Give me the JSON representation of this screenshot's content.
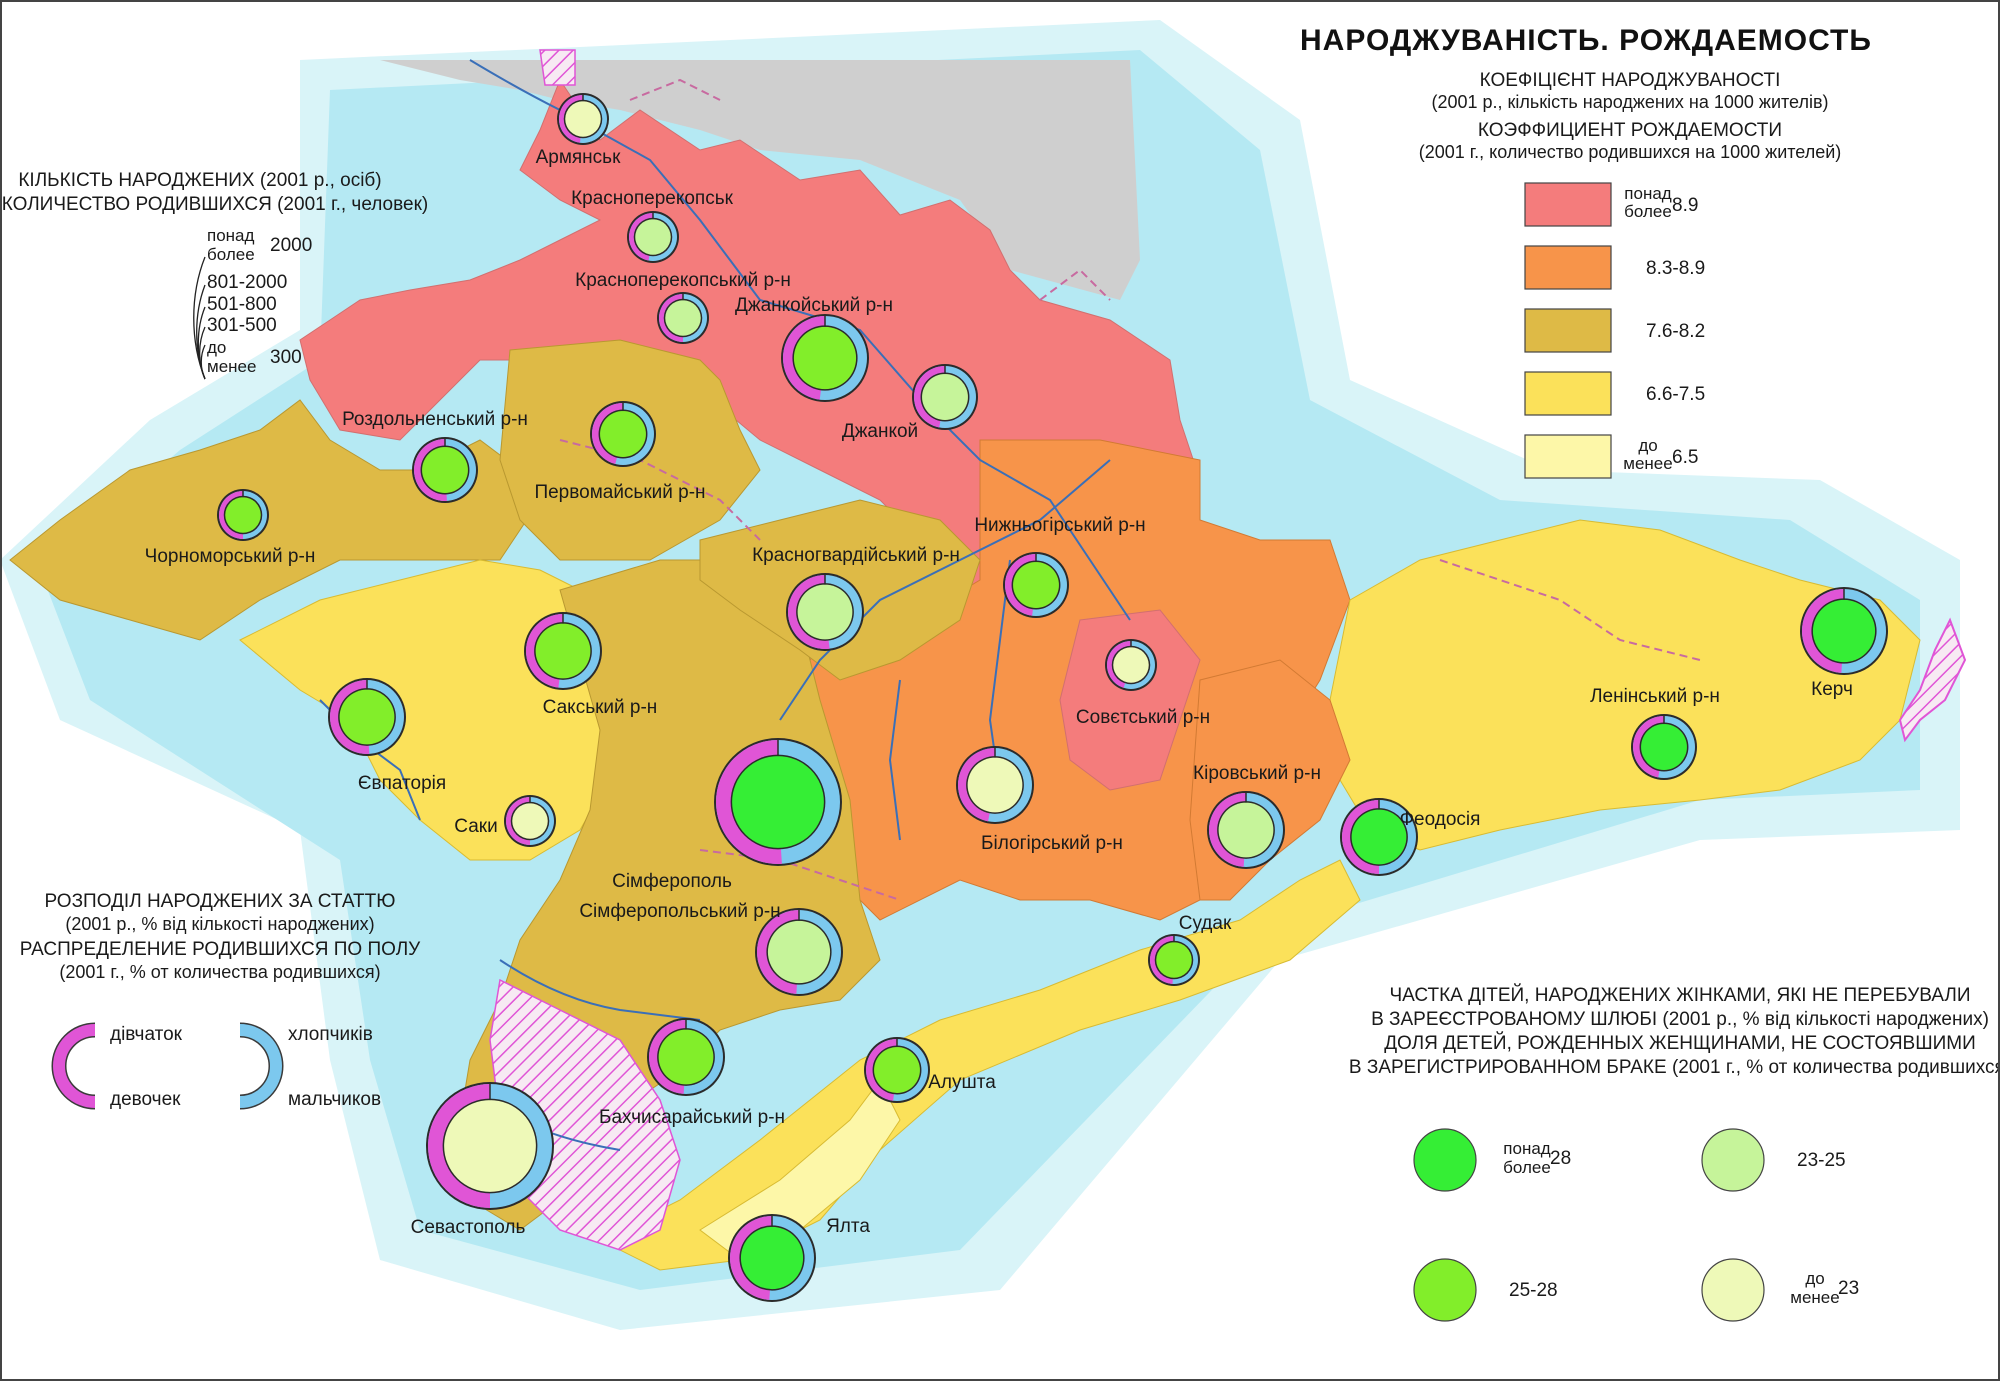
{
  "title": "НАРОДЖУВАНІСТЬ. РОЖДАЕМОСТЬ",
  "rate_legend": {
    "title_ua": "КОЕФІЦІЄНТ НАРОДЖУВАНОСТІ",
    "sub_ua": "(2001 р., кількість народжених на 1000 жителів)",
    "title_ru": "КОЭФФИЦИЕНТ РОЖДАЕМОСТИ",
    "sub_ru": "(2001 г., количество родившихся на 1000 жителей)",
    "classes": [
      {
        "prefix_ua": "понад",
        "prefix_ru": "более",
        "label": "8.9",
        "color": "#f47c7c"
      },
      {
        "prefix_ua": "",
        "prefix_ru": "",
        "label": "8.3-8.9",
        "color": "#f7944a"
      },
      {
        "prefix_ua": "",
        "prefix_ru": "",
        "label": "7.6-8.2",
        "color": "#deba46"
      },
      {
        "prefix_ua": "",
        "prefix_ru": "",
        "label": "6.6-7.5",
        "color": "#fbe15a"
      },
      {
        "prefix_ua": "до",
        "prefix_ru": "менее",
        "label": "6.5",
        "color": "#fdf7a8"
      }
    ]
  },
  "size_legend": {
    "title_ua": "КІЛЬКІСТЬ НАРОДЖЕНИХ (2001 р., осіб)",
    "title_ru": "КОЛИЧЕСТВО РОДИВШИХСЯ (2001 г., человек)",
    "classes": [
      {
        "prefix_ua": "понад",
        "prefix_ru": "более",
        "label": "2000"
      },
      {
        "prefix_ua": "",
        "prefix_ru": "",
        "label": "801-2000"
      },
      {
        "prefix_ua": "",
        "prefix_ru": "",
        "label": "501-800"
      },
      {
        "prefix_ua": "",
        "prefix_ru": "",
        "label": "301-500"
      },
      {
        "prefix_ua": "до",
        "prefix_ru": "менее",
        "label": "300"
      }
    ]
  },
  "sex_legend": {
    "title_ua": "РОЗПОДІЛ НАРОДЖЕНИХ ЗА СТАТТЮ",
    "sub_ua": "(2001 р., % від кількості народжених)",
    "title_ru": "РАСПРЕДЕЛЕНИЕ РОДИВШИХСЯ ПО ПОЛУ",
    "sub_ru": "(2001 г., % от количества родившихся)",
    "girls_ua": "дівчаток",
    "girls_ru": "девочек",
    "boys_ua": "хлопчиків",
    "boys_ru": "мальчиков",
    "girls_color": "#e055d6",
    "boys_color": "#7cc8ee"
  },
  "illegit_legend": {
    "line1": "ЧАСТКА ДІТЕЙ, НАРОДЖЕНИХ ЖІНКАМИ, ЯКІ НЕ ПЕРЕБУВАЛИ",
    "line2": "В ЗАРЕЄСТРОВАНОМУ ШЛЮБІ (2001 р., % від кількості народжених)",
    "line3": "ДОЛЯ ДЕТЕЙ, РОЖДЕННЫХ ЖЕНЩИНАМИ, НЕ СОСТОЯВШИМИ",
    "line4": "В ЗАРЕГИСТРИРОВАННОМ БРАКЕ (2001 г., % от количества родившихся)",
    "classes": [
      {
        "prefix_ua": "понад",
        "prefix_ru": "более",
        "label": "28",
        "color": "#35ee35"
      },
      {
        "prefix_ua": "",
        "prefix_ru": "",
        "label": "23-25",
        "color": "#c6f49a"
      },
      {
        "prefix_ua": "",
        "prefix_ru": "",
        "label": "25-28",
        "color": "#82ee2a"
      },
      {
        "prefix_ua": "до",
        "prefix_ru": "менее",
        "label": "23",
        "color": "#eef9b8"
      }
    ]
  },
  "colors": {
    "sea": "#b5e9f3",
    "sea_light": "#d9f4f8",
    "land_outside": "#cfcfcf",
    "river": "#3a6fb8",
    "border_pink": "#c86aa0",
    "hatch": "#e055d6"
  },
  "places": [
    {
      "label": "Армянськ",
      "births_class": "до 300",
      "girls_pct": 48,
      "illegit_class": "до 23"
    },
    {
      "label": "Красноперекопськ",
      "births_class": "до 300",
      "girls_pct": 47,
      "illegit_class": "23-25"
    },
    {
      "label": "Красноперекопський р-н",
      "births_class": "до 300",
      "girls_pct": 50,
      "illegit_class": "23-25"
    },
    {
      "label": "Джанкойський р-н",
      "births_class": "801-2000",
      "girls_pct": 48,
      "illegit_class": "25-28"
    },
    {
      "label": "Джанкой",
      "births_class": "301-500",
      "girls_pct": 47,
      "illegit_class": "23-25"
    },
    {
      "label": "Роздольненський р-н",
      "births_class": "301-500",
      "girls_pct": 51,
      "illegit_class": "25-28"
    },
    {
      "label": "Первомайський р-н",
      "births_class": "301-500",
      "girls_pct": 46,
      "illegit_class": "25-28"
    },
    {
      "label": "Чорноморський р-н",
      "births_class": "до 300",
      "girls_pct": 50,
      "illegit_class": "25-28"
    },
    {
      "label": "Красногвардійський р-н",
      "births_class": "501-800",
      "girls_pct": 52,
      "illegit_class": "23-25"
    },
    {
      "label": "Нижньогірський р-н",
      "births_class": "301-500",
      "girls_pct": 48,
      "illegit_class": "25-28"
    },
    {
      "label": "Сакський р-н",
      "births_class": "501-800",
      "girls_pct": 48,
      "illegit_class": "25-28"
    },
    {
      "label": "Євпаторія",
      "births_class": "501-800",
      "girls_pct": 51,
      "illegit_class": "25-28"
    },
    {
      "label": "Совєтський р-н",
      "births_class": "до 300",
      "girls_pct": 45,
      "illegit_class": "до 23"
    },
    {
      "label": "Кіровський р-н",
      "births_class": "501-800",
      "girls_pct": 49,
      "illegit_class": "23-25"
    },
    {
      "label": "Ленінський р-н",
      "births_class": "301-500",
      "girls_pct": 47,
      "illegit_class": "понад 28"
    },
    {
      "label": "Керч",
      "births_class": "801-2000",
      "girls_pct": 49,
      "illegit_class": "понад 28"
    },
    {
      "label": "Саки",
      "births_class": "до 300",
      "girls_pct": 50,
      "illegit_class": "до 23"
    },
    {
      "label": "Білогірський р-н",
      "births_class": "501-800",
      "girls_pct": 47,
      "illegit_class": "до 23"
    },
    {
      "label": "Феодосія",
      "births_class": "501-800",
      "girls_pct": 50,
      "illegit_class": "понад 28"
    },
    {
      "label": "Сімферополь",
      "births_class": "понад 2000",
      "girls_pct": 51,
      "illegit_class": "понад 28"
    },
    {
      "label": "Сімферопольський р-н",
      "births_class": "801-2000",
      "girls_pct": 49,
      "illegit_class": "23-25"
    },
    {
      "label": "Судак",
      "births_class": "до 300",
      "girls_pct": 49,
      "illegit_class": "25-28"
    },
    {
      "label": "Алушта",
      "births_class": "301-500",
      "girls_pct": 48,
      "illegit_class": "25-28"
    },
    {
      "label": "Бахчисарайський р-н",
      "births_class": "501-800",
      "girls_pct": 49,
      "illegit_class": "25-28"
    },
    {
      "label": "Севастополь",
      "births_class": "понад 2000",
      "girls_pct": 50,
      "illegit_class": "до 23"
    },
    {
      "label": "Ялта",
      "births_class": "801-2000",
      "girls_pct": 49,
      "illegit_class": "понад 28"
    }
  ]
}
